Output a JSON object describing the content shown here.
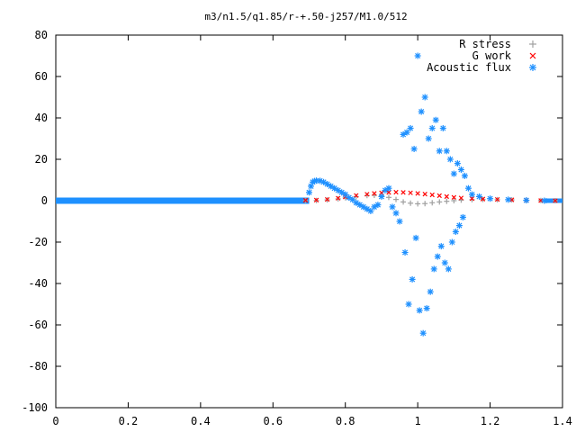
{
  "chart_data": {
    "type": "scatter",
    "title": "m3/n1.5/q1.85/r-+.50-j257/M1.0/512",
    "xlabel": "",
    "ylabel": "",
    "xlim": [
      0,
      1.4
    ],
    "ylim": [
      -100,
      80
    ],
    "xticks": [
      "0",
      "0.2",
      "0.4",
      "0.6",
      "0.8",
      "1",
      "1.2",
      "1.4"
    ],
    "yticks": [
      "-100",
      "-80",
      "-60",
      "-40",
      "-20",
      "0",
      "20",
      "40",
      "60",
      "80"
    ],
    "legend_position": "top-right",
    "grid": false,
    "series": [
      {
        "name": "R stress",
        "color": "#a0a0a0",
        "marker": "plus",
        "x": [
          0.69,
          0.72,
          0.75,
          0.78,
          0.8,
          0.83,
          0.86,
          0.88,
          0.9,
          0.92,
          0.94,
          0.96,
          0.98,
          1.0,
          1.02,
          1.04,
          1.06,
          1.08,
          1.1,
          1.12,
          1.15,
          1.18,
          1.22,
          1.26,
          1.3,
          1.34,
          1.38
        ],
        "y": [
          0.0,
          0.1,
          0.4,
          0.9,
          1.4,
          2.0,
          2.5,
          2.6,
          2.4,
          1.6,
          0.6,
          -0.6,
          -1.2,
          -1.5,
          -1.4,
          -1.0,
          -0.6,
          -0.3,
          0.0,
          0.3,
          0.5,
          0.6,
          0.5,
          0.4,
          0.2,
          0.1,
          0.0
        ]
      },
      {
        "name": "G work",
        "color": "#ff0000",
        "marker": "cross",
        "x": [
          0.69,
          0.72,
          0.75,
          0.78,
          0.8,
          0.83,
          0.86,
          0.88,
          0.9,
          0.92,
          0.94,
          0.96,
          0.98,
          1.0,
          1.02,
          1.04,
          1.06,
          1.08,
          1.1,
          1.12,
          1.15,
          1.18,
          1.22,
          1.26,
          1.3,
          1.34,
          1.38
        ],
        "y": [
          0.2,
          0.3,
          0.6,
          1.2,
          1.8,
          2.5,
          3.1,
          3.5,
          3.8,
          4.0,
          4.1,
          4.0,
          3.8,
          3.5,
          3.2,
          2.8,
          2.4,
          2.0,
          1.6,
          1.3,
          1.0,
          0.8,
          0.6,
          0.4,
          0.2,
          0.1,
          0.0
        ]
      },
      {
        "name": "Acoustic flux",
        "color": "#1e90ff",
        "marker": "star",
        "x": [
          0.7,
          0.705,
          0.71,
          0.715,
          0.72,
          0.73,
          0.74,
          0.75,
          0.76,
          0.77,
          0.78,
          0.79,
          0.8,
          0.81,
          0.82,
          0.83,
          0.84,
          0.85,
          0.86,
          0.87,
          0.88,
          0.89,
          0.9,
          0.91,
          0.92,
          0.93,
          0.94,
          0.95,
          0.96,
          0.965,
          0.97,
          0.975,
          0.98,
          0.985,
          0.99,
          0.995,
          1.0,
          1.005,
          1.01,
          1.015,
          1.02,
          1.025,
          1.03,
          1.035,
          1.04,
          1.045,
          1.05,
          1.055,
          1.06,
          1.065,
          1.07,
          1.075,
          1.08,
          1.085,
          1.09,
          1.095,
          1.1,
          1.105,
          1.11,
          1.115,
          1.12,
          1.125,
          1.13,
          1.14,
          1.15,
          1.17,
          1.2,
          1.25,
          1.3,
          1.35
        ],
        "y": [
          4.0,
          7.0,
          9.0,
          9.5,
          9.7,
          9.6,
          9.0,
          8.0,
          7.0,
          6.0,
          5.0,
          4.0,
          3.0,
          1.5,
          0.5,
          -1.0,
          -2.0,
          -3.0,
          -4.0,
          -5.0,
          -3.0,
          -2.0,
          2.0,
          5.0,
          6.0,
          -3.0,
          -6.0,
          -10.0,
          32.0,
          -25.0,
          33.0,
          -50.0,
          35.0,
          -38.0,
          25.0,
          -18.0,
          70.0,
          -53.0,
          43.0,
          -64.0,
          50.0,
          -52.0,
          30.0,
          -44.0,
          35.0,
          -33.0,
          39.0,
          -27.0,
          24.0,
          -22.0,
          35.0,
          -30.0,
          24.0,
          -33.0,
          20.0,
          -20.0,
          13.0,
          -15.0,
          18.0,
          -12.0,
          15.0,
          -8.0,
          12.0,
          6.0,
          3.0,
          2.0,
          1.0,
          0.5,
          0.2,
          0.0
        ]
      }
    ]
  }
}
